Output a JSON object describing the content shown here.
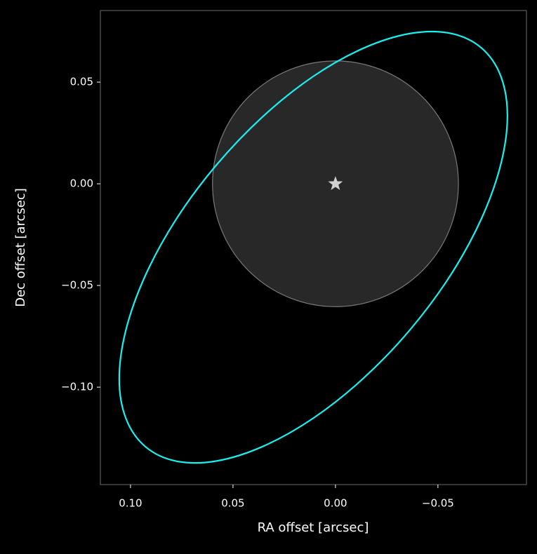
{
  "chart_data": {
    "type": "orbit",
    "xlabel": "RA offset [arcsec]",
    "ylabel": "Dec offset [arcsec]",
    "xlim": [
      0.1147,
      -0.0932
    ],
    "ylim": [
      -0.1479,
      0.0852
    ],
    "xticks": [
      {
        "value": 0.1,
        "label": "0.10"
      },
      {
        "value": 0.05,
        "label": "0.05"
      },
      {
        "value": 0,
        "label": "0.00"
      },
      {
        "value": -0.05,
        "label": "−0.05"
      }
    ],
    "yticks": [
      {
        "value": 0.05,
        "label": "0.05"
      },
      {
        "value": 0,
        "label": "0.00"
      },
      {
        "value": -0.05,
        "label": "−0.05"
      },
      {
        "value": -0.1,
        "label": "−0.10"
      }
    ],
    "disk": {
      "x": 0,
      "y": 0,
      "radius": 0.06,
      "color": "#282828",
      "edgecolor": "#7a7a7a"
    },
    "star": {
      "x": 0,
      "y": 0,
      "color": "#d0d0d0"
    },
    "series": [
      {
        "color": "#19f0f0",
        "x": [
          -0.0711,
          -0.056,
          -0.0364,
          -0.0135,
          0.011,
          0.0355,
          0.0583,
          0.0779,
          0.0929,
          0.1023,
          0.1055,
          0.1022,
          0.0927,
          0.0776,
          0.058,
          0.0351,
          0.0106,
          -0.0139,
          -0.0367,
          -0.0563,
          -0.0713,
          -0.0807,
          -0.0839,
          -0.0806
        ],
        "y": [
          0.0669,
          0.074,
          0.0739,
          0.0666,
          0.0527,
          0.033,
          0.009,
          -0.0177,
          -0.0454,
          -0.0721,
          -0.096,
          -0.1155,
          -0.1293,
          -0.1364,
          -0.1363,
          -0.129,
          -0.1151,
          -0.0954,
          -0.0714,
          -0.0447,
          -0.017,
          0.0097,
          0.0336,
          0.0531
        ]
      }
    ]
  }
}
